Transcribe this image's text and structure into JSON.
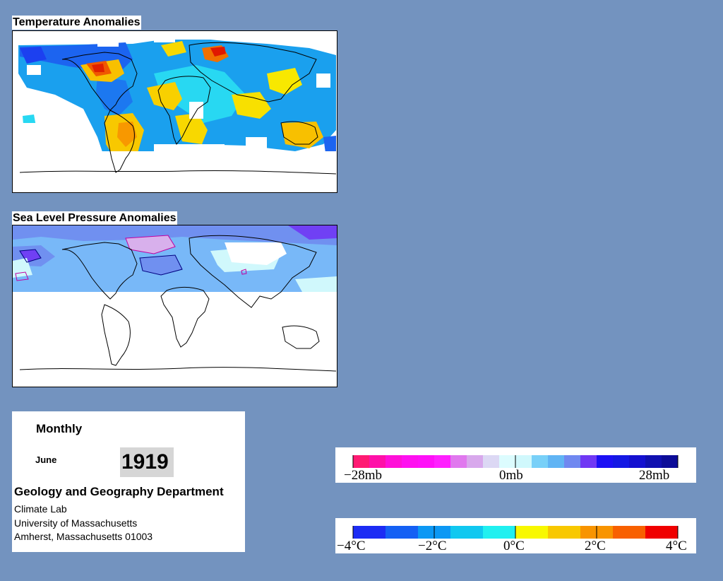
{
  "temperature_panel": {
    "title": "Temperature Anomalies"
  },
  "pressure_panel": {
    "title": "Sea Level Pressure Anomalies"
  },
  "info": {
    "frequency": "Monthly",
    "month": "June",
    "year": "1919",
    "department": "Geology and Geography Department",
    "lab": "Climate Lab",
    "university": "University of Massachusetts",
    "address": "Amherst, Massachusetts 01003"
  },
  "pressure_legend": {
    "labels": [
      "−28mb",
      "0mb",
      "28mb"
    ],
    "colors": [
      "#ff1a73",
      "#ff10a8",
      "#ff10d8",
      "#ff10f0",
      "#ff10f8",
      "#ff20ff",
      "#e078ee",
      "#d8a8ec",
      "#dcd8f4",
      "#dcfcfe",
      "#d0f8fc",
      "#78d0f8",
      "#60b4f4",
      "#7088f0",
      "#7038f4",
      "#1c10f4",
      "#1418e4",
      "#1410d0",
      "#1010b0",
      "#0c0c98"
    ]
  },
  "temperature_legend": {
    "labels": [
      "−4°C",
      "−2°C",
      "0°C",
      "2°C",
      "4°C"
    ],
    "colors": [
      "#1c2cf4",
      "#1460f4",
      "#0c98f4",
      "#10c8f0",
      "#20f0f0",
      "#f8f800",
      "#f8c800",
      "#f89400",
      "#f86000",
      "#f00000"
    ]
  }
}
